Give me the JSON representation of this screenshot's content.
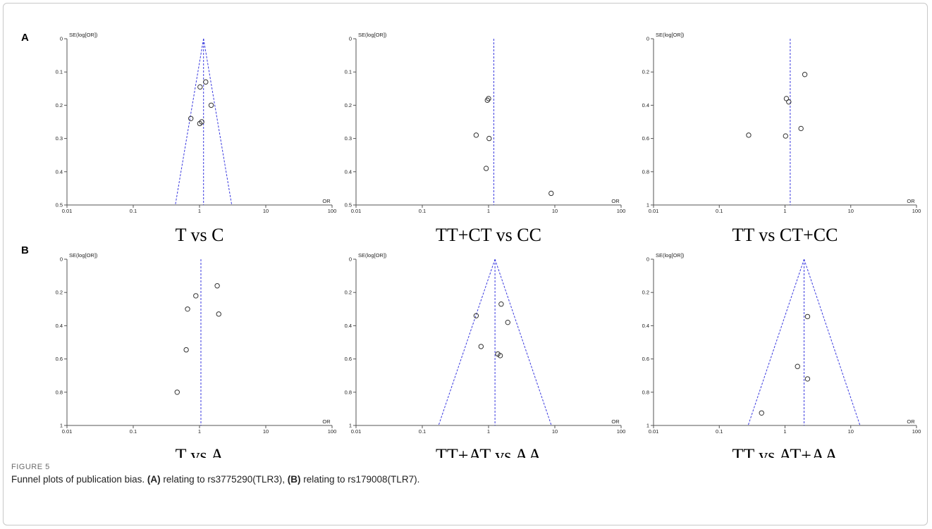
{
  "figure": {
    "label": "FIGURE 5",
    "caption": {
      "lead": "Funnel plots of publication bias. ",
      "a_tag": "(A)",
      "a_text": " relating to rs3775290(TLR3), ",
      "b_tag": "(B)",
      "b_text": " relating to rs179008(TLR7)."
    }
  },
  "rows": [
    {
      "label": "A"
    },
    {
      "label": "B"
    }
  ],
  "chart_data": [
    {
      "type": "scatter",
      "row": 0,
      "col": 0,
      "title": "T vs C",
      "ylabel": "SE(log[OR])",
      "xlabel": "OR",
      "xscale": "log",
      "xlim": [
        0.01,
        100
      ],
      "ylim": [
        0,
        0.5
      ],
      "xticks": [
        "0.01",
        "0.1",
        "1",
        "10",
        "100"
      ],
      "yticks": [
        "0",
        "0.1",
        "0.2",
        "0.3",
        "0.4",
        "0.5"
      ],
      "pooled_or": 1.15,
      "funnel": true,
      "points": [
        [
          1.24,
          0.13
        ],
        [
          1.02,
          0.145
        ],
        [
          1.5,
          0.2
        ],
        [
          0.74,
          0.24
        ],
        [
          1.08,
          0.25
        ],
        [
          1.01,
          0.255
        ]
      ]
    },
    {
      "type": "scatter",
      "row": 0,
      "col": 1,
      "title": "TT+CT vs CC",
      "ylabel": "SE(log[OR])",
      "xlabel": "OR",
      "xscale": "log",
      "xlim": [
        0.01,
        100
      ],
      "ylim": [
        0,
        0.5
      ],
      "xticks": [
        "0.01",
        "0.1",
        "1",
        "10",
        "100"
      ],
      "yticks": [
        "0",
        "0.1",
        "0.2",
        "0.3",
        "0.4",
        "0.5"
      ],
      "pooled_or": 1.2,
      "funnel": false,
      "points": [
        [
          1.0,
          0.18
        ],
        [
          0.96,
          0.185
        ],
        [
          0.65,
          0.29
        ],
        [
          1.02,
          0.3
        ],
        [
          0.92,
          0.39
        ],
        [
          8.8,
          0.465
        ]
      ]
    },
    {
      "type": "scatter",
      "row": 0,
      "col": 2,
      "title": "TT vs CT+CC",
      "ylabel": "SE(log[OR])",
      "xlabel": "OR",
      "xscale": "log",
      "xlim": [
        0.01,
        100
      ],
      "ylim": [
        0,
        1
      ],
      "xticks": [
        "0.01",
        "0.1",
        "1",
        "10",
        "100"
      ],
      "yticks": [
        "0",
        "0.2",
        "0.4",
        "0.6",
        "0.8",
        "1"
      ],
      "pooled_or": 1.2,
      "funnel": false,
      "points": [
        [
          2.0,
          0.215
        ],
        [
          1.05,
          0.36
        ],
        [
          1.14,
          0.38
        ],
        [
          1.75,
          0.54
        ],
        [
          0.28,
          0.58
        ],
        [
          1.02,
          0.585
        ]
      ]
    },
    {
      "type": "scatter",
      "row": 1,
      "col": 0,
      "title": "T vs A",
      "ylabel": "SE(log[OR])",
      "xlabel": "OR",
      "xscale": "log",
      "xlim": [
        0.01,
        100
      ],
      "ylim": [
        0,
        1
      ],
      "xticks": [
        "0.01",
        "0.1",
        "1",
        "10",
        "100"
      ],
      "yticks": [
        "0",
        "0.2",
        "0.4",
        "0.6",
        "0.8",
        "1"
      ],
      "pooled_or": 1.05,
      "funnel": false,
      "points": [
        [
          1.85,
          0.16
        ],
        [
          0.88,
          0.22
        ],
        [
          0.66,
          0.3
        ],
        [
          1.95,
          0.33
        ],
        [
          0.63,
          0.545
        ],
        [
          0.46,
          0.8
        ]
      ]
    },
    {
      "type": "scatter",
      "row": 1,
      "col": 1,
      "title": "TT+AT vs AA",
      "ylabel": "SE(log[OR])",
      "xlabel": "OR",
      "xscale": "log",
      "xlim": [
        0.01,
        100
      ],
      "ylim": [
        0,
        1
      ],
      "xticks": [
        "0.01",
        "0.1",
        "1",
        "10",
        "100"
      ],
      "yticks": [
        "0",
        "0.2",
        "0.4",
        "0.6",
        "0.8",
        "1"
      ],
      "pooled_or": 1.25,
      "funnel": true,
      "points": [
        [
          1.55,
          0.27
        ],
        [
          0.65,
          0.34
        ],
        [
          1.95,
          0.38
        ],
        [
          0.77,
          0.525
        ],
        [
          1.38,
          0.57
        ],
        [
          1.5,
          0.58
        ]
      ]
    },
    {
      "type": "scatter",
      "row": 1,
      "col": 2,
      "title": "TT vs AT+AA",
      "ylabel": "SE(log[OR])",
      "xlabel": "OR",
      "xscale": "log",
      "xlim": [
        0.01,
        100
      ],
      "ylim": [
        0,
        1
      ],
      "xticks": [
        "0.01",
        "0.1",
        "1",
        "10",
        "100"
      ],
      "yticks": [
        "0",
        "0.2",
        "0.4",
        "0.6",
        "0.8",
        "1"
      ],
      "pooled_or": 1.95,
      "funnel": true,
      "points": [
        [
          2.2,
          0.345
        ],
        [
          1.55,
          0.645
        ],
        [
          2.2,
          0.72
        ],
        [
          0.44,
          0.925
        ]
      ]
    }
  ]
}
